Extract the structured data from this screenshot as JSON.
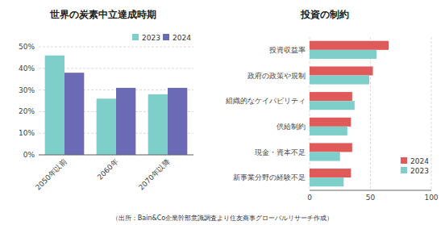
{
  "chart_data": [
    {
      "type": "bar",
      "title": "世界の炭素中立達成時期",
      "categories": [
        "2050年以前",
        "2060年",
        "2070年以降"
      ],
      "series": [
        {
          "name": "2023",
          "color": "#7ECECA",
          "values": [
            46,
            26,
            28
          ]
        },
        {
          "name": "2024",
          "color": "#6B6BB5",
          "values": [
            38,
            31,
            31
          ]
        }
      ],
      "ylim": [
        0,
        50
      ],
      "yticks": [
        {
          "value": 0,
          "label": "0%"
        },
        {
          "value": 10,
          "label": "10%"
        },
        {
          "value": 20,
          "label": "20%"
        },
        {
          "value": 30,
          "label": "30%"
        },
        {
          "value": 40,
          "label": "40%"
        },
        {
          "value": 50,
          "label": "50%"
        }
      ],
      "grid": true,
      "legend": "upper right"
    },
    {
      "type": "bar",
      "orientation": "horizontal",
      "title": "投資の制約",
      "categories": [
        "新事業分野の経験不足",
        "現金・資本不足",
        "供給制約",
        "組織的なケイパビリティ",
        "政府の政策や規制",
        "投資収益率"
      ],
      "series": [
        {
          "name": "2024",
          "color": "#E05A5A",
          "values": [
            34,
            35,
            34,
            35,
            52,
            65
          ]
        },
        {
          "name": "2023",
          "color": "#7ECECA",
          "values": [
            28,
            25,
            31,
            37,
            49,
            55
          ]
        }
      ],
      "xlim": [
        0,
        100
      ],
      "xticks": [
        0,
        50,
        100
      ],
      "grid": true,
      "legend": "lower right"
    }
  ],
  "caption": "（出所：Bain&Co企業幹部意識調査より住友商事グローバルリサーチ作成）"
}
